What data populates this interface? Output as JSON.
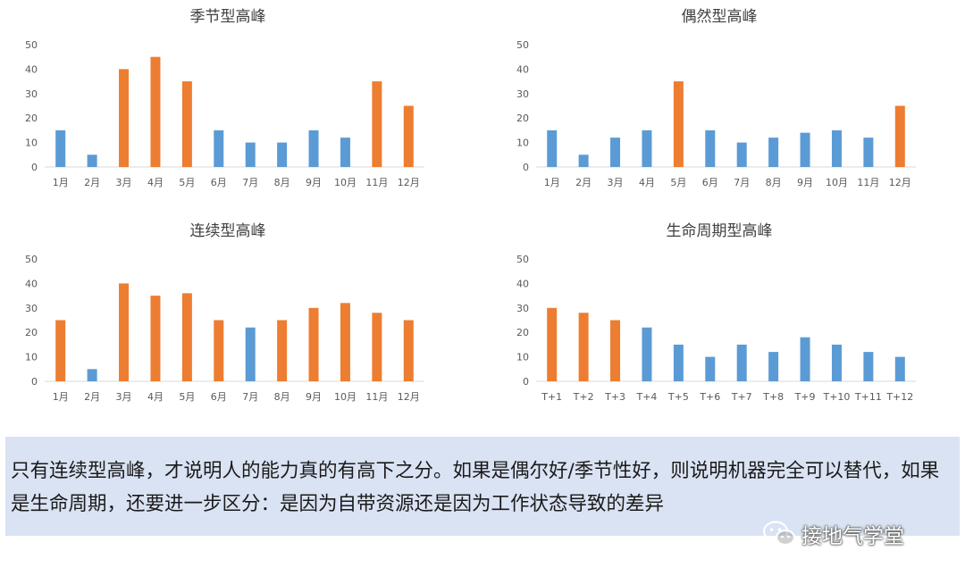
{
  "colors": {
    "orange": "#ed7d31",
    "blue": "#5b9bd5"
  },
  "chart_data": [
    {
      "type": "bar",
      "title": "季节型高峰",
      "categories": [
        "1月",
        "2月",
        "3月",
        "4月",
        "5月",
        "6月",
        "7月",
        "8月",
        "9月",
        "10月",
        "11月",
        "12月"
      ],
      "values": [
        15,
        5,
        40,
        45,
        35,
        15,
        10,
        10,
        15,
        12,
        35,
        25
      ],
      "highlight": [
        false,
        false,
        true,
        true,
        true,
        false,
        false,
        false,
        false,
        false,
        true,
        true
      ],
      "ylim": [
        0,
        50
      ],
      "yticks": [
        0,
        10,
        20,
        30,
        40,
        50
      ],
      "grid": false,
      "legend": "none"
    },
    {
      "type": "bar",
      "title": "偶然型高峰",
      "categories": [
        "1月",
        "2月",
        "3月",
        "4月",
        "5月",
        "6月",
        "7月",
        "8月",
        "9月",
        "10月",
        "11月",
        "12月"
      ],
      "values": [
        15,
        5,
        12,
        15,
        35,
        15,
        10,
        12,
        14,
        15,
        12,
        25
      ],
      "highlight": [
        false,
        false,
        false,
        false,
        true,
        false,
        false,
        false,
        false,
        false,
        false,
        true
      ],
      "ylim": [
        0,
        50
      ],
      "yticks": [
        0,
        10,
        20,
        30,
        40,
        50
      ],
      "grid": false,
      "legend": "none"
    },
    {
      "type": "bar",
      "title": "连续型高峰",
      "categories": [
        "1月",
        "2月",
        "3月",
        "4月",
        "5月",
        "6月",
        "7月",
        "8月",
        "9月",
        "10月",
        "11月",
        "12月"
      ],
      "values": [
        25,
        5,
        40,
        35,
        36,
        25,
        22,
        25,
        30,
        32,
        28,
        25
      ],
      "highlight": [
        true,
        false,
        true,
        true,
        true,
        true,
        false,
        true,
        true,
        true,
        true,
        true
      ],
      "ylim": [
        0,
        50
      ],
      "yticks": [
        0,
        10,
        20,
        30,
        40,
        50
      ],
      "grid": false,
      "legend": "none"
    },
    {
      "type": "bar",
      "title": "生命周期型高峰",
      "categories": [
        "T+1",
        "T+2",
        "T+3",
        "T+4",
        "T+5",
        "T+6",
        "T+7",
        "T+8",
        "T+9",
        "T+10",
        "T+11",
        "T+12"
      ],
      "values": [
        30,
        28,
        25,
        22,
        15,
        10,
        15,
        12,
        18,
        15,
        12,
        10
      ],
      "highlight": [
        true,
        true,
        true,
        false,
        false,
        false,
        false,
        false,
        false,
        false,
        false,
        false
      ],
      "ylim": [
        0,
        50
      ],
      "yticks": [
        0,
        10,
        20,
        30,
        40,
        50
      ],
      "grid": false,
      "legend": "none"
    }
  ],
  "caption": {
    "text": "只有连续型高峰，才说明人的能力真的有高下之分。如果是偶尔好/季节性好，则说明机器完全可以替代，如果是生命周期，还要进一步区分：是因为自带资源还是因为工作状态导致的差异"
  },
  "watermark": {
    "text": "接地气学堂",
    "icon": "wechat-icon"
  }
}
